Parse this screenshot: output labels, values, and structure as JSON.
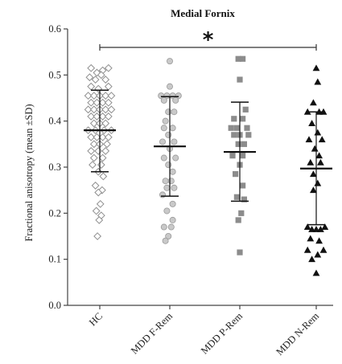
{
  "chart_data": {
    "type": "scatter",
    "title": "Medial Fornix",
    "ylabel": "Fractional anisotropy (mean ±SD)",
    "xlabel": "",
    "ylim": [
      0.0,
      0.6
    ],
    "yticks": [
      "0.0",
      "0.1",
      "0.2",
      "0.3",
      "0.4",
      "0.5",
      "0.6"
    ],
    "grid": false,
    "legend": "none",
    "significance": {
      "label": "*",
      "from": "HC",
      "to": "MDD N-Rem"
    },
    "categories": [
      "HC",
      "MDD F-Rem",
      "MDD P-Rem",
      "MDD N-Rem"
    ],
    "groups": [
      {
        "category": "HC",
        "marker": "diamond-open",
        "mean": 0.38,
        "sd_low": 0.29,
        "sd_high": 0.467,
        "points": [
          {
            "x": -0.3,
            "y": 0.515
          },
          {
            "x": -0.1,
            "y": 0.505
          },
          {
            "x": 0.1,
            "y": 0.51
          },
          {
            "x": 0.3,
            "y": 0.515
          },
          {
            "x": -0.35,
            "y": 0.495
          },
          {
            "x": -0.15,
            "y": 0.49
          },
          {
            "x": 0.05,
            "y": 0.5
          },
          {
            "x": 0.2,
            "y": 0.49
          },
          {
            "x": -0.3,
            "y": 0.475
          },
          {
            "x": -0.05,
            "y": 0.47
          },
          {
            "x": 0.3,
            "y": 0.475
          },
          {
            "x": -0.4,
            "y": 0.455
          },
          {
            "x": -0.2,
            "y": 0.455
          },
          {
            "x": 0.0,
            "y": 0.455
          },
          {
            "x": 0.2,
            "y": 0.455
          },
          {
            "x": 0.4,
            "y": 0.455
          },
          {
            "x": -0.3,
            "y": 0.44
          },
          {
            "x": -0.1,
            "y": 0.44
          },
          {
            "x": 0.1,
            "y": 0.44
          },
          {
            "x": 0.3,
            "y": 0.44
          },
          {
            "x": -0.4,
            "y": 0.425
          },
          {
            "x": -0.2,
            "y": 0.425
          },
          {
            "x": 0.0,
            "y": 0.425
          },
          {
            "x": 0.2,
            "y": 0.425
          },
          {
            "x": 0.4,
            "y": 0.425
          },
          {
            "x": -0.3,
            "y": 0.41
          },
          {
            "x": -0.1,
            "y": 0.41
          },
          {
            "x": 0.1,
            "y": 0.41
          },
          {
            "x": 0.3,
            "y": 0.41
          },
          {
            "x": -0.2,
            "y": 0.395
          },
          {
            "x": 0.0,
            "y": 0.395
          },
          {
            "x": 0.2,
            "y": 0.395
          },
          {
            "x": -0.4,
            "y": 0.38
          },
          {
            "x": -0.15,
            "y": 0.38
          },
          {
            "x": 0.15,
            "y": 0.38
          },
          {
            "x": 0.4,
            "y": 0.38
          },
          {
            "x": -0.3,
            "y": 0.365
          },
          {
            "x": -0.1,
            "y": 0.365
          },
          {
            "x": 0.1,
            "y": 0.365
          },
          {
            "x": 0.3,
            "y": 0.365
          },
          {
            "x": -0.2,
            "y": 0.35
          },
          {
            "x": 0.0,
            "y": 0.35
          },
          {
            "x": 0.25,
            "y": 0.35
          },
          {
            "x": -0.3,
            "y": 0.335
          },
          {
            "x": -0.05,
            "y": 0.335
          },
          {
            "x": 0.2,
            "y": 0.335
          },
          {
            "x": -0.2,
            "y": 0.32
          },
          {
            "x": 0.1,
            "y": 0.32
          },
          {
            "x": -0.25,
            "y": 0.305
          },
          {
            "x": 0.05,
            "y": 0.305
          },
          {
            "x": -0.05,
            "y": 0.29
          },
          {
            "x": 0.12,
            "y": 0.28
          },
          {
            "x": -0.15,
            "y": 0.26
          },
          {
            "x": 0.08,
            "y": 0.25
          },
          {
            "x": -0.05,
            "y": 0.245
          },
          {
            "x": 0.02,
            "y": 0.22
          },
          {
            "x": -0.12,
            "y": 0.205
          },
          {
            "x": 0.05,
            "y": 0.195
          },
          {
            "x": -0.02,
            "y": 0.185
          },
          {
            "x": -0.08,
            "y": 0.15
          }
        ]
      },
      {
        "category": "MDD F-Rem",
        "marker": "circle-gray",
        "mean": 0.345,
        "sd_low": 0.237,
        "sd_high": 0.453,
        "points": [
          {
            "x": 0.0,
            "y": 0.53
          },
          {
            "x": 0.0,
            "y": 0.475
          },
          {
            "x": -0.3,
            "y": 0.455
          },
          {
            "x": -0.1,
            "y": 0.455
          },
          {
            "x": 0.1,
            "y": 0.455
          },
          {
            "x": 0.3,
            "y": 0.455
          },
          {
            "x": -0.2,
            "y": 0.445
          },
          {
            "x": 0.2,
            "y": 0.445
          },
          {
            "x": -0.05,
            "y": 0.42
          },
          {
            "x": 0.15,
            "y": 0.42
          },
          {
            "x": -0.15,
            "y": 0.4
          },
          {
            "x": -0.2,
            "y": 0.385
          },
          {
            "x": 0.1,
            "y": 0.385
          },
          {
            "x": -0.05,
            "y": 0.37
          },
          {
            "x": -0.25,
            "y": 0.355
          },
          {
            "x": 0.15,
            "y": 0.355
          },
          {
            "x": 0.0,
            "y": 0.34
          },
          {
            "x": -0.2,
            "y": 0.32
          },
          {
            "x": 0.2,
            "y": 0.32
          },
          {
            "x": -0.05,
            "y": 0.305
          },
          {
            "x": 0.1,
            "y": 0.29
          },
          {
            "x": -0.15,
            "y": 0.27
          },
          {
            "x": 0.05,
            "y": 0.27
          },
          {
            "x": -0.1,
            "y": 0.255
          },
          {
            "x": 0.15,
            "y": 0.255
          },
          {
            "x": -0.25,
            "y": 0.24
          },
          {
            "x": 0.1,
            "y": 0.22
          },
          {
            "x": -0.1,
            "y": 0.205
          },
          {
            "x": 0.1,
            "y": 0.185
          },
          {
            "x": -0.2,
            "y": 0.17
          },
          {
            "x": 0.05,
            "y": 0.17
          },
          {
            "x": -0.05,
            "y": 0.15
          },
          {
            "x": -0.15,
            "y": 0.14
          }
        ]
      },
      {
        "category": "MDD P-Rem",
        "marker": "square-gray",
        "mean": 0.333,
        "sd_low": 0.226,
        "sd_high": 0.441,
        "points": [
          {
            "x": -0.05,
            "y": 0.535
          },
          {
            "x": 0.1,
            "y": 0.535
          },
          {
            "x": 0.0,
            "y": 0.49
          },
          {
            "x": 0.2,
            "y": 0.425
          },
          {
            "x": -0.2,
            "y": 0.405
          },
          {
            "x": 0.1,
            "y": 0.405
          },
          {
            "x": -0.3,
            "y": 0.385
          },
          {
            "x": -0.1,
            "y": 0.385
          },
          {
            "x": 0.25,
            "y": 0.385
          },
          {
            "x": -0.2,
            "y": 0.37
          },
          {
            "x": 0.0,
            "y": 0.37
          },
          {
            "x": 0.3,
            "y": 0.37
          },
          {
            "x": -0.05,
            "y": 0.35
          },
          {
            "x": 0.15,
            "y": 0.35
          },
          {
            "x": -0.25,
            "y": 0.325
          },
          {
            "x": 0.1,
            "y": 0.325
          },
          {
            "x": 0.0,
            "y": 0.305
          },
          {
            "x": -0.15,
            "y": 0.285
          },
          {
            "x": 0.1,
            "y": 0.26
          },
          {
            "x": -0.1,
            "y": 0.235
          },
          {
            "x": 0.15,
            "y": 0.23
          },
          {
            "x": 0.05,
            "y": 0.2
          },
          {
            "x": -0.05,
            "y": 0.185
          },
          {
            "x": 0.0,
            "y": 0.115
          }
        ]
      },
      {
        "category": "MDD N-Rem",
        "marker": "triangle-black",
        "mean": 0.297,
        "sd_low": 0.175,
        "sd_high": 0.42,
        "points": [
          {
            "x": 0.0,
            "y": 0.515
          },
          {
            "x": 0.05,
            "y": 0.485
          },
          {
            "x": -0.1,
            "y": 0.44
          },
          {
            "x": -0.3,
            "y": 0.42
          },
          {
            "x": 0.1,
            "y": 0.42
          },
          {
            "x": 0.25,
            "y": 0.42
          },
          {
            "x": -0.15,
            "y": 0.395
          },
          {
            "x": 0.05,
            "y": 0.375
          },
          {
            "x": -0.25,
            "y": 0.36
          },
          {
            "x": 0.2,
            "y": 0.36
          },
          {
            "x": -0.05,
            "y": 0.34
          },
          {
            "x": 0.1,
            "y": 0.325
          },
          {
            "x": -0.2,
            "y": 0.31
          },
          {
            "x": 0.15,
            "y": 0.31
          },
          {
            "x": -0.1,
            "y": 0.285
          },
          {
            "x": 0.05,
            "y": 0.265
          },
          {
            "x": -0.1,
            "y": 0.25
          },
          {
            "x": -0.3,
            "y": 0.17
          },
          {
            "x": -0.15,
            "y": 0.165
          },
          {
            "x": 0.0,
            "y": 0.165
          },
          {
            "x": 0.15,
            "y": 0.165
          },
          {
            "x": 0.3,
            "y": 0.17
          },
          {
            "x": -0.2,
            "y": 0.145
          },
          {
            "x": 0.1,
            "y": 0.14
          },
          {
            "x": -0.3,
            "y": 0.12
          },
          {
            "x": 0.05,
            "y": 0.11
          },
          {
            "x": 0.25,
            "y": 0.12
          },
          {
            "x": -0.15,
            "y": 0.1
          },
          {
            "x": 0.0,
            "y": 0.07
          }
        ]
      }
    ]
  }
}
